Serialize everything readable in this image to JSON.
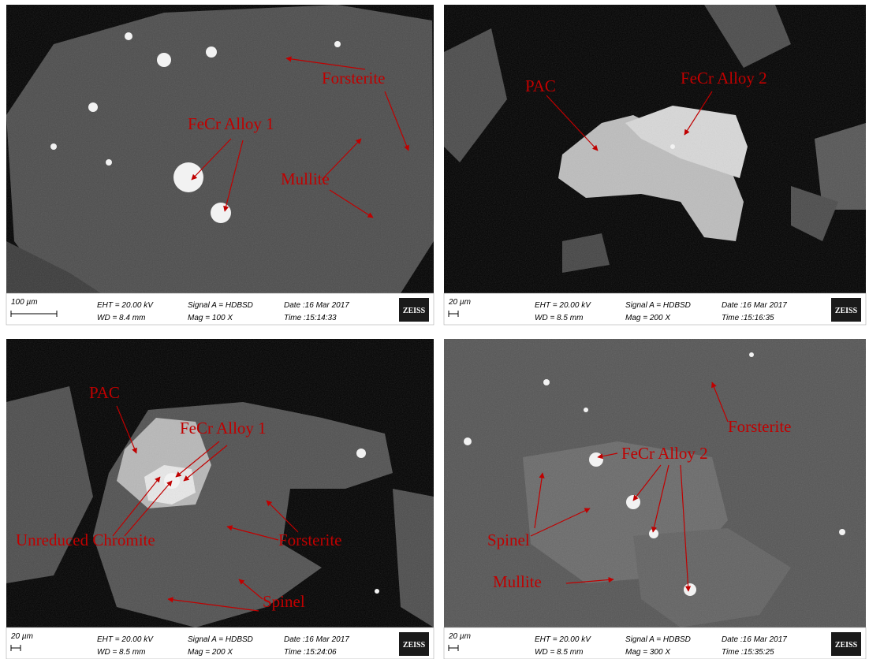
{
  "panels": [
    {
      "labels": [
        "Forsterite",
        "FeCr Alloy 1",
        "Mullite"
      ],
      "scale": "100 µm",
      "eht": "EHT = 20.00 kV",
      "wd": "WD = 8.4 mm",
      "signal": "Signal A = HDBSD",
      "mag": "Mag =   100 X",
      "date": "Date :16 Mar 2017",
      "time": "Time :15:14:33",
      "logo": "ZEISS"
    },
    {
      "labels": [
        "PAC",
        "FeCr Alloy 2"
      ],
      "scale": "20 µm",
      "eht": "EHT = 20.00 kV",
      "wd": "WD = 8.5 mm",
      "signal": "Signal A = HDBSD",
      "mag": "Mag =   200 X",
      "date": "Date :16 Mar 2017",
      "time": "Time :15:16:35",
      "logo": "ZEISS"
    },
    {
      "labels": [
        "PAC",
        "FeCr Alloy 1",
        "Unreduced Chromite",
        "Forsterite",
        "Spinel"
      ],
      "scale": "20 µm",
      "eht": "EHT = 20.00 kV",
      "wd": "WD = 8.5 mm",
      "signal": "Signal A = HDBSD",
      "mag": "Mag =   200 X",
      "date": "Date :16 Mar 2017",
      "time": "Time :15:24:06",
      "logo": "ZEISS"
    },
    {
      "labels": [
        "Forsterite",
        "FeCr Alloy 2",
        "Spinel",
        "Mullite"
      ],
      "scale": "20 µm",
      "eht": "EHT = 20.00 kV",
      "wd": "WD = 8.5 mm",
      "signal": "Signal A = HDBSD",
      "mag": "Mag =   300 X",
      "date": "Date :16 Mar 2017",
      "time": "Time :15:35:25",
      "logo": "ZEISS"
    }
  ]
}
